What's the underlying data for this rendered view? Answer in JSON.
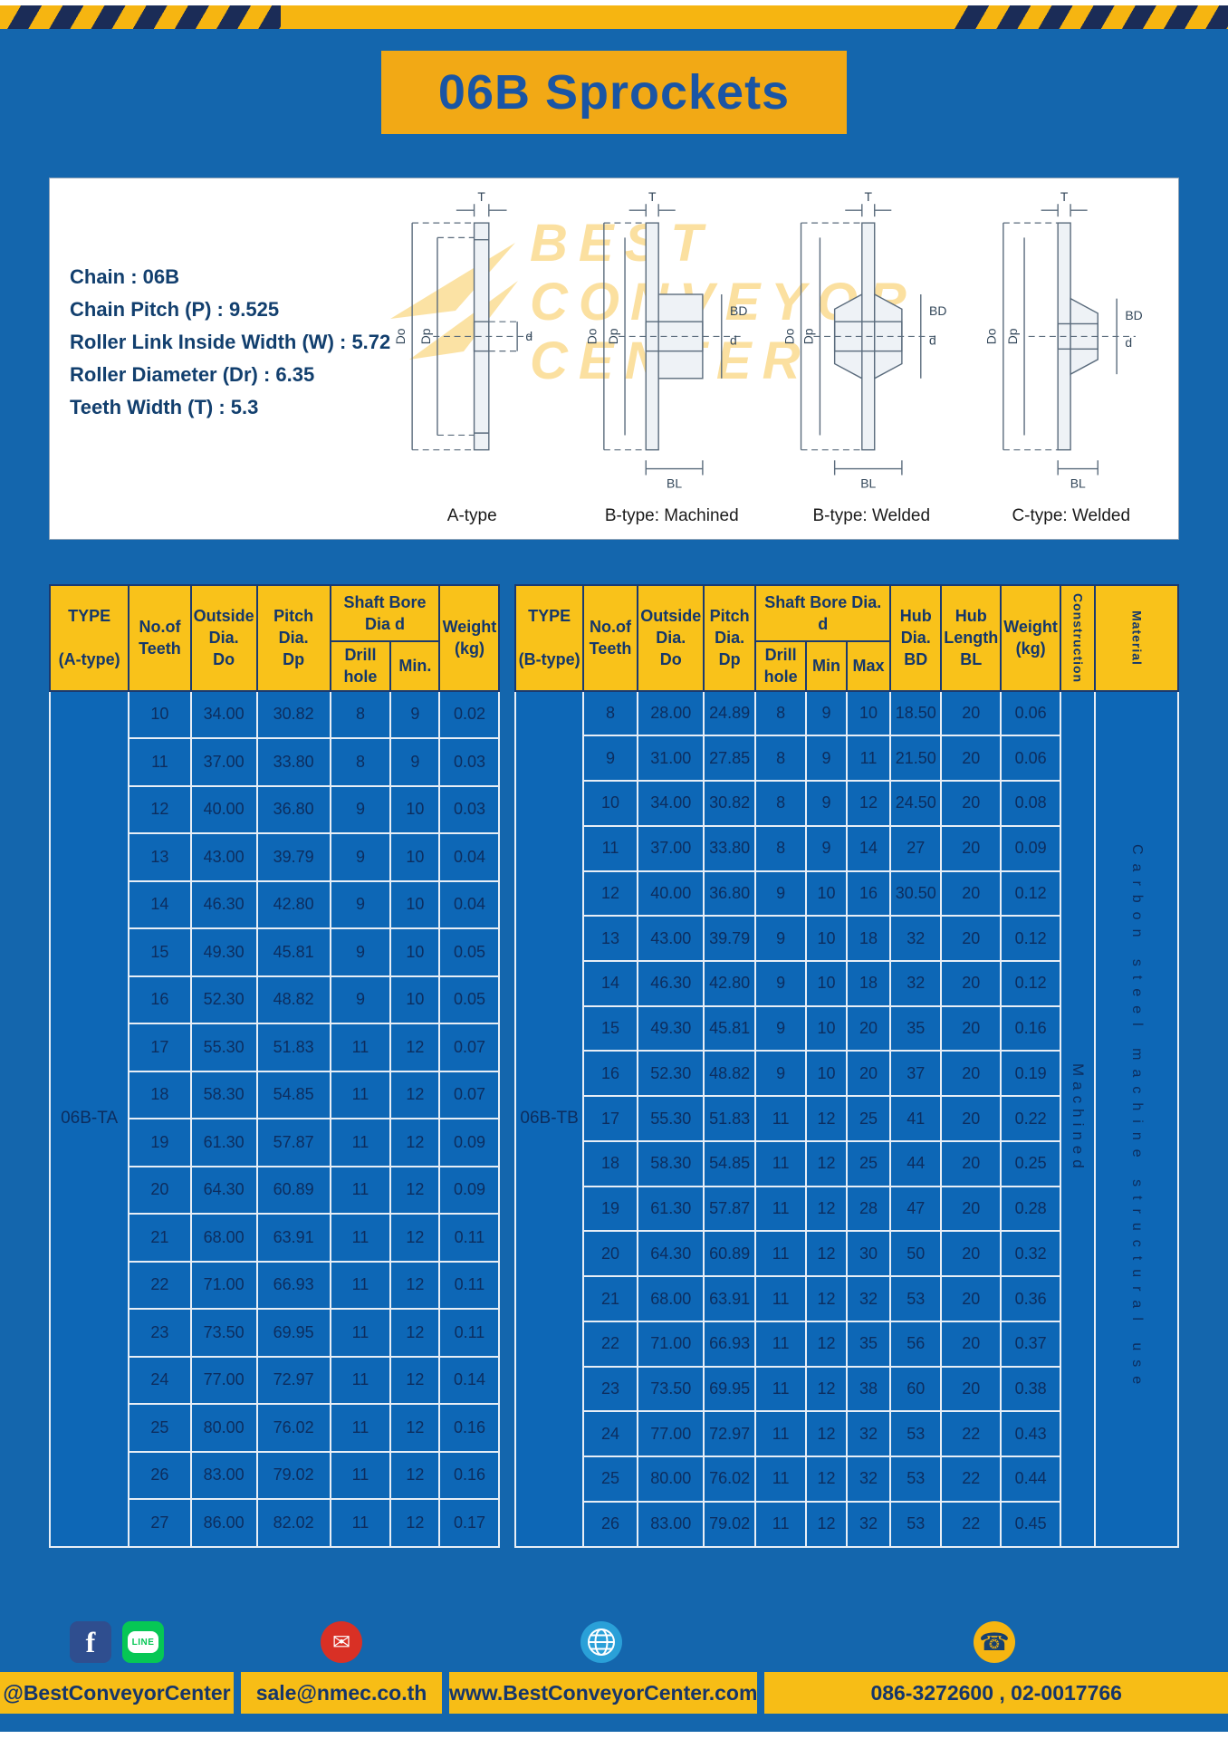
{
  "header": {
    "title": "06B Sprockets"
  },
  "specs": {
    "lines": [
      "Chain : 06B",
      "Chain Pitch (P) : 9.525",
      "Roller Link Inside Width (W) : 5.72",
      "Roller Diameter (Dr) : 6.35",
      "Teeth Width (T) : 5.3"
    ]
  },
  "watermark": {
    "lines": [
      "BEST",
      "CONVEYOR",
      "CENTER"
    ]
  },
  "drawings": {
    "captions": [
      "A-type",
      "B-type: Machined",
      "B-type: Welded",
      "C-type: Welded"
    ],
    "labels": {
      "t": "T",
      "do": "Do",
      "dp": "Dp",
      "d": "d",
      "bd": "BD",
      "bl": "BL"
    }
  },
  "table_a": {
    "type_header": "TYPE\n\n(A-type)",
    "type_value": "06B-TA",
    "headers": {
      "teeth": "No.of\nTeeth",
      "outside": "Outside\nDia.\nDo",
      "pitch": "Pitch Dia.\nDp",
      "shaft": "Shaft Bore Dia d",
      "drill": "Drill hole",
      "min": "Min.",
      "weight": "Weight\n(kg)"
    },
    "rows": [
      [
        "10",
        "34.00",
        "30.82",
        "8",
        "9",
        "0.02"
      ],
      [
        "11",
        "37.00",
        "33.80",
        "8",
        "9",
        "0.03"
      ],
      [
        "12",
        "40.00",
        "36.80",
        "9",
        "10",
        "0.03"
      ],
      [
        "13",
        "43.00",
        "39.79",
        "9",
        "10",
        "0.04"
      ],
      [
        "14",
        "46.30",
        "42.80",
        "9",
        "10",
        "0.04"
      ],
      [
        "15",
        "49.30",
        "45.81",
        "9",
        "10",
        "0.05"
      ],
      [
        "16",
        "52.30",
        "48.82",
        "9",
        "10",
        "0.05"
      ],
      [
        "17",
        "55.30",
        "51.83",
        "11",
        "12",
        "0.07"
      ],
      [
        "18",
        "58.30",
        "54.85",
        "11",
        "12",
        "0.07"
      ],
      [
        "19",
        "61.30",
        "57.87",
        "11",
        "12",
        "0.09"
      ],
      [
        "20",
        "64.30",
        "60.89",
        "11",
        "12",
        "0.09"
      ],
      [
        "21",
        "68.00",
        "63.91",
        "11",
        "12",
        "0.11"
      ],
      [
        "22",
        "71.00",
        "66.93",
        "11",
        "12",
        "0.11"
      ],
      [
        "23",
        "73.50",
        "69.95",
        "11",
        "12",
        "0.11"
      ],
      [
        "24",
        "77.00",
        "72.97",
        "11",
        "12",
        "0.14"
      ],
      [
        "25",
        "80.00",
        "76.02",
        "11",
        "12",
        "0.16"
      ],
      [
        "26",
        "83.00",
        "79.02",
        "11",
        "12",
        "0.16"
      ],
      [
        "27",
        "86.00",
        "82.02",
        "11",
        "12",
        "0.17"
      ]
    ]
  },
  "table_b": {
    "type_header": "TYPE\n\n(B-type)",
    "type_value": "06B-TB",
    "construction": "Machined",
    "material": "Carbon steel machine structural use",
    "headers": {
      "teeth": "No.of\nTeeth",
      "outside": "Outside\nDia.\nDo",
      "pitch": "Pitch\nDia.\nDp",
      "shaft": "Shaft Bore Dia.  d",
      "drill": "Drill hole",
      "min": "Min",
      "max": "Max",
      "hub_dia": "Hub\nDia.\nBD",
      "hub_len": "Hub\nLength\nBL",
      "weight": "Weight\n(kg)",
      "construction": "Construction",
      "material": "Material"
    },
    "rows": [
      [
        "8",
        "28.00",
        "24.89",
        "8",
        "9",
        "10",
        "18.50",
        "20",
        "0.06"
      ],
      [
        "9",
        "31.00",
        "27.85",
        "8",
        "9",
        "11",
        "21.50",
        "20",
        "0.06"
      ],
      [
        "10",
        "34.00",
        "30.82",
        "8",
        "9",
        "12",
        "24.50",
        "20",
        "0.08"
      ],
      [
        "11",
        "37.00",
        "33.80",
        "8",
        "9",
        "14",
        "27",
        "20",
        "0.09"
      ],
      [
        "12",
        "40.00",
        "36.80",
        "9",
        "10",
        "16",
        "30.50",
        "20",
        "0.12"
      ],
      [
        "13",
        "43.00",
        "39.79",
        "9",
        "10",
        "18",
        "32",
        "20",
        "0.12"
      ],
      [
        "14",
        "46.30",
        "42.80",
        "9",
        "10",
        "18",
        "32",
        "20",
        "0.12"
      ],
      [
        "15",
        "49.30",
        "45.81",
        "9",
        "10",
        "20",
        "35",
        "20",
        "0.16"
      ],
      [
        "16",
        "52.30",
        "48.82",
        "9",
        "10",
        "20",
        "37",
        "20",
        "0.19"
      ],
      [
        "17",
        "55.30",
        "51.83",
        "11",
        "12",
        "25",
        "41",
        "20",
        "0.22"
      ],
      [
        "18",
        "58.30",
        "54.85",
        "11",
        "12",
        "25",
        "44",
        "20",
        "0.25"
      ],
      [
        "19",
        "61.30",
        "57.87",
        "11",
        "12",
        "28",
        "47",
        "20",
        "0.28"
      ],
      [
        "20",
        "64.30",
        "60.89",
        "11",
        "12",
        "30",
        "50",
        "20",
        "0.32"
      ],
      [
        "21",
        "68.00",
        "63.91",
        "11",
        "12",
        "32",
        "53",
        "20",
        "0.36"
      ],
      [
        "22",
        "71.00",
        "66.93",
        "11",
        "12",
        "35",
        "56",
        "20",
        "0.37"
      ],
      [
        "23",
        "73.50",
        "69.95",
        "11",
        "12",
        "38",
        "60",
        "20",
        "0.38"
      ],
      [
        "24",
        "77.00",
        "72.97",
        "11",
        "12",
        "32",
        "53",
        "22",
        "0.43"
      ],
      [
        "25",
        "80.00",
        "76.02",
        "11",
        "12",
        "32",
        "53",
        "22",
        "0.44"
      ],
      [
        "26",
        "83.00",
        "79.02",
        "11",
        "12",
        "32",
        "53",
        "22",
        "0.45"
      ]
    ]
  },
  "footer": {
    "facebook_label": "@BestConveyorCenter",
    "email": "sale@nmec.co.th",
    "website": "www.BestConveyorCenter.com",
    "phone": "086-3272600 , 02-0017766",
    "facebook_letter": "f",
    "line_text": "LINE",
    "email_glyph": "✉",
    "phone_glyph": "☎"
  },
  "colors": {
    "page_blue": "#1466ad",
    "cell_blue": "#0d67b6",
    "header_yellow": "#f9c21a",
    "banner_yellow": "#f2a915",
    "footer_yellow": "#f7bd16",
    "navy_text": "#15356b",
    "stripe_navy": "#1b2c57"
  }
}
